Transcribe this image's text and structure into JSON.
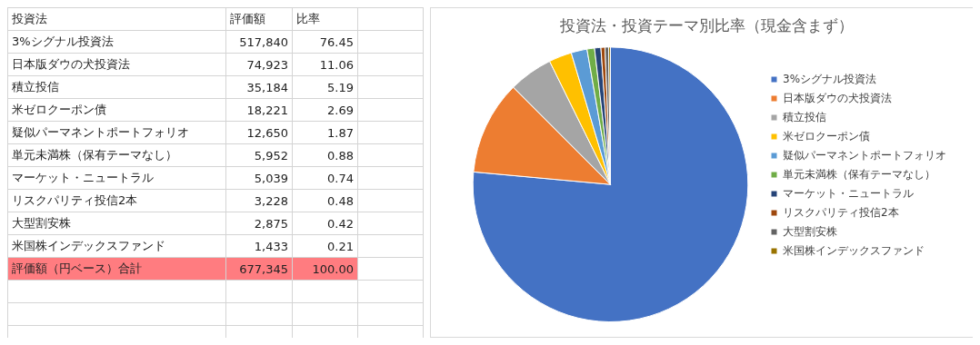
{
  "chart_data": [
    {
      "type": "other",
      "annotations": [
        "投資法",
        "評価額",
        "比率",
        "3%シグナル投資法",
        "517,840",
        "76.45",
        "日本版ダウの犬投資法",
        "74,923",
        "11.06",
        "積立投信",
        "35,184",
        "5.19",
        "米ゼロクーポン債",
        "18,221",
        "2.69",
        "疑似パーマネントポートフォリオ",
        "12,650",
        "1.87",
        "単元未満株（保有テーマなし）",
        "5,952",
        "0.88",
        "マーケット・ニュートラル",
        "5,039",
        "0.74",
        "リスクパリティ投信2本",
        "3,228",
        "0.48",
        "大型割安株",
        "2,875",
        "0.42",
        "米国株インデックスファンド",
        "1,433",
        "0.21",
        "評価額（円ベース）合計",
        "677,345",
        "100.00"
      ]
    },
    {
      "type": "pie",
      "title": "投資法・投資テーマ別比率（現金含まず）",
      "categories": [
        "3%シグナル投資法",
        "日本版ダウの犬投資法",
        "積立投信",
        "米ゼロクーポン債",
        "疑似パーマネントポートフォリオ",
        "単元未満株（保有テーマなし）",
        "マーケット・ニュートラル",
        "リスクパリティ投信2本",
        "大型割安株",
        "米国株インデックスファンド"
      ],
      "values": [
        76.45,
        11.06,
        5.19,
        2.69,
        1.87,
        0.88,
        0.74,
        0.48,
        0.42,
        0.21
      ],
      "colors": [
        "#4472c4",
        "#ed7d31",
        "#a5a5a5",
        "#ffc000",
        "#5b9bd5",
        "#70ad47",
        "#264478",
        "#9e480e",
        "#636363",
        "#997300"
      ],
      "legend": "right"
    }
  ]
}
